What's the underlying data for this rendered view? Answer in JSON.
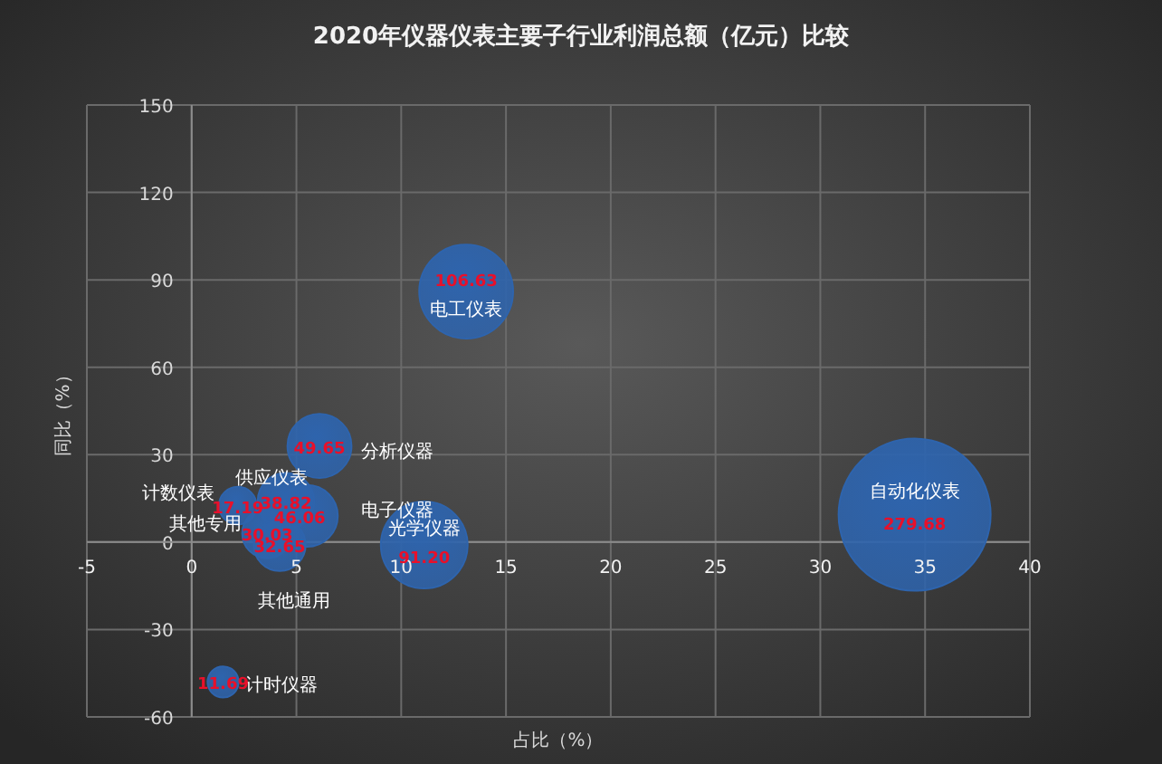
{
  "chart_data": {
    "type": "bubble",
    "title": "2020年仪器仪表主要子行业利润总额（亿元）比较",
    "xlabel": "占比（%）",
    "ylabel": "同比（%）",
    "xlim": [
      -5,
      40
    ],
    "xticks": [
      -5,
      0,
      5,
      10,
      15,
      20,
      25,
      30,
      35,
      40
    ],
    "ylim": [
      -60,
      150
    ],
    "yticks": [
      -60,
      -30,
      0,
      30,
      60,
      90,
      120,
      150
    ],
    "grid": true,
    "annotations": [
      {
        "text": "自动化仪表",
        "x": 34.5,
        "y": 9.4
      },
      {
        "text": "电工仪表",
        "x": 13.1,
        "y": 86
      },
      {
        "text": "光学仪器",
        "x": 11.1,
        "y": -1
      },
      {
        "text": "分析仪器",
        "x": 6.1,
        "y": 33
      },
      {
        "text": "电子仪器",
        "x": 5.5,
        "y": 9
      },
      {
        "text": "供应仪表",
        "x": 4.5,
        "y": 14
      },
      {
        "text": "计数仪表",
        "x": 2.2,
        "y": 12.5
      },
      {
        "text": "其他专用",
        "x": 3.6,
        "y": 3
      },
      {
        "text": "其他通用",
        "x": 4.2,
        "y": -1
      },
      {
        "text": "计时仪器",
        "x": 1.5,
        "y": -48
      }
    ],
    "series": [
      {
        "color": "#2e64ad",
        "x": [
          34.5,
          13.1,
          11.1,
          6.1,
          5.5,
          4.5,
          2.2,
          3.6,
          4.2,
          1.5
        ],
        "values": [
          9.4,
          86,
          -1,
          33,
          9,
          14,
          12.5,
          3,
          -1,
          -48
        ],
        "sizes": [
          279.68,
          106.63,
          91.2,
          49.65,
          46.06,
          38.82,
          17.19,
          30.03,
          32.65,
          11.69
        ],
        "value_labels": [
          "279.68",
          "106.63",
          "91.20",
          "49.65",
          "46.06",
          "38.82",
          "17.19",
          "30.03",
          "32.65",
          "11.69"
        ]
      }
    ]
  }
}
